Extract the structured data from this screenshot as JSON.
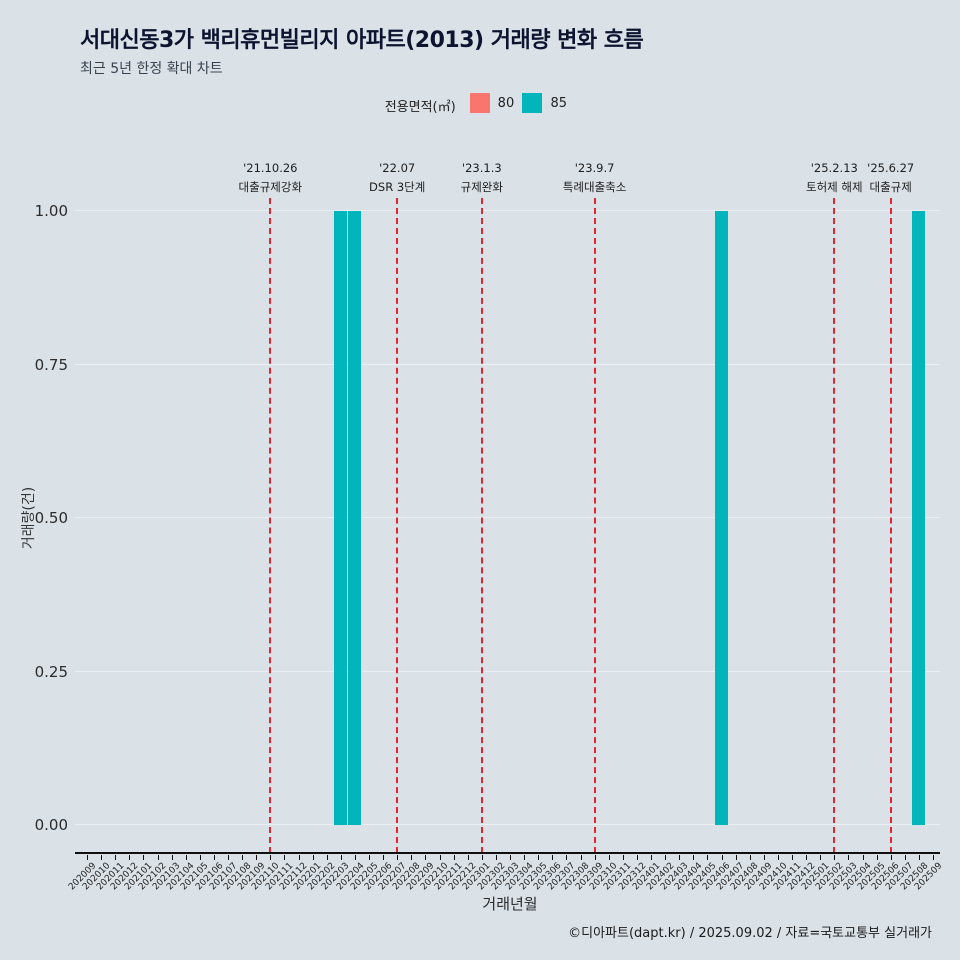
{
  "header": {
    "title": "서대신동3가 백리휴먼빌리지 아파트(2013) 거래량 변화 흐름",
    "subtitle": "최근 5년 한정 확대 차트"
  },
  "legend": {
    "label": "전용면적(㎡)",
    "items": [
      {
        "label": "80",
        "color": "#f8766d"
      },
      {
        "label": "85",
        "color": "#00b6bc"
      }
    ]
  },
  "footer": {
    "credit": "©디아파트(dapt.kr) / 2025.09.02 / 자료=국토교통부 실거래가"
  },
  "chart_data": {
    "type": "bar",
    "title": "서대신동3가 백리휴먼빌리지 아파트(2013) 거래량 변화 흐름",
    "subtitle": "최근 5년 한정 확대 차트",
    "xlabel": "거래년월",
    "ylabel": "거래량(건)",
    "ylim": [
      0,
      1.0
    ],
    "yticks": [
      0,
      0.25,
      0.5,
      0.75,
      1.0
    ],
    "ytick_labels": [
      "0.00",
      "0.25",
      "0.50",
      "0.75",
      "1.00"
    ],
    "grid": true,
    "legend_position": "top-center",
    "event_line_color": "#e02633",
    "categories": [
      "202009",
      "202010",
      "202011",
      "202012",
      "202101",
      "202102",
      "202103",
      "202104",
      "202105",
      "202106",
      "202107",
      "202108",
      "202109",
      "202110",
      "202111",
      "202112",
      "202201",
      "202202",
      "202203",
      "202204",
      "202205",
      "202206",
      "202207",
      "202208",
      "202209",
      "202210",
      "202211",
      "202212",
      "202301",
      "202302",
      "202303",
      "202304",
      "202305",
      "202306",
      "202307",
      "202308",
      "202309",
      "202310",
      "202311",
      "202312",
      "202401",
      "202402",
      "202403",
      "202404",
      "202405",
      "202406",
      "202407",
      "202408",
      "202409",
      "202410",
      "202411",
      "202412",
      "202501",
      "202502",
      "202503",
      "202504",
      "202505",
      "202506",
      "202507",
      "202508",
      "202509"
    ],
    "series": [
      {
        "name": "80",
        "color": "#f8766d",
        "values_by_month": {}
      },
      {
        "name": "85",
        "color": "#00b6bc",
        "values_by_month": {
          "202203": 1,
          "202204": 1,
          "202406": 1,
          "202508": 1
        }
      }
    ],
    "events": [
      {
        "date": "'21.10.26",
        "label": "대출규제강화",
        "month": "202110"
      },
      {
        "date": "'22.07",
        "label": "DSR 3단계",
        "month": "202207"
      },
      {
        "date": "'23.1.3",
        "label": "규제완화",
        "month": "202301"
      },
      {
        "date": "'23.9.7",
        "label": "특례대출축소",
        "month": "202309"
      },
      {
        "date": "'25.2.13",
        "label": "토허제 해제",
        "month": "202502"
      },
      {
        "date": "'25.6.27",
        "label": "대출규제",
        "month": "202506"
      }
    ]
  }
}
